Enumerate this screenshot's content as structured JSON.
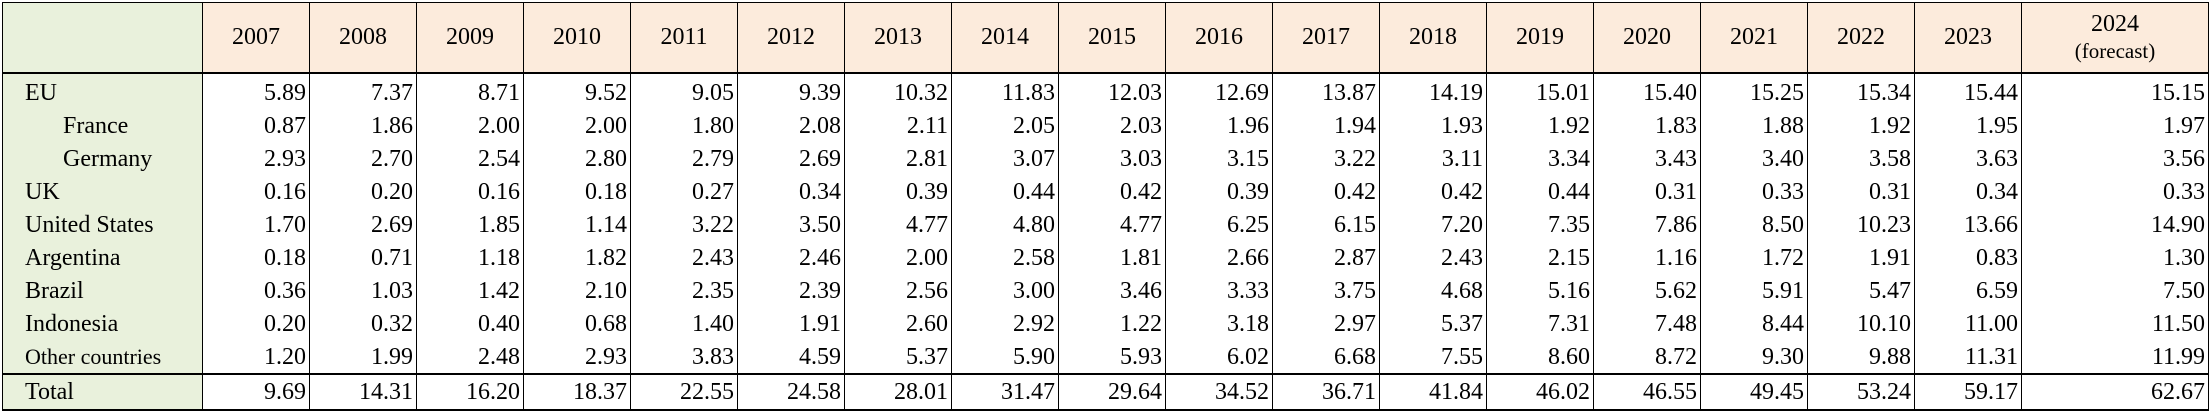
{
  "table": {
    "years": [
      "2007",
      "2008",
      "2009",
      "2010",
      "2011",
      "2012",
      "2013",
      "2014",
      "2015",
      "2016",
      "2017",
      "2018",
      "2019",
      "2020",
      "2021",
      "2022",
      "2023",
      "2024"
    ],
    "last_year_note": "(forecast)",
    "rows": [
      {
        "label": "EU",
        "values": [
          "5.89",
          "7.37",
          "8.71",
          "9.52",
          "9.05",
          "9.39",
          "10.32",
          "11.83",
          "12.03",
          "12.69",
          "13.87",
          "14.19",
          "15.01",
          "15.40",
          "15.25",
          "15.34",
          "15.44",
          "15.15"
        ]
      },
      {
        "label": "France",
        "values": [
          "0.87",
          "1.86",
          "2.00",
          "2.00",
          "1.80",
          "2.08",
          "2.11",
          "2.05",
          "2.03",
          "1.96",
          "1.94",
          "1.93",
          "1.92",
          "1.83",
          "1.88",
          "1.92",
          "1.95",
          "1.97"
        ]
      },
      {
        "label": "Germany",
        "values": [
          "2.93",
          "2.70",
          "2.54",
          "2.80",
          "2.79",
          "2.69",
          "2.81",
          "3.07",
          "3.03",
          "3.15",
          "3.22",
          "3.11",
          "3.34",
          "3.43",
          "3.40",
          "3.58",
          "3.63",
          "3.56"
        ]
      },
      {
        "label": "UK",
        "values": [
          "0.16",
          "0.20",
          "0.16",
          "0.18",
          "0.27",
          "0.34",
          "0.39",
          "0.44",
          "0.42",
          "0.39",
          "0.42",
          "0.42",
          "0.44",
          "0.31",
          "0.33",
          "0.31",
          "0.34",
          "0.33"
        ]
      },
      {
        "label": "United States",
        "values": [
          "1.70",
          "2.69",
          "1.85",
          "1.14",
          "3.22",
          "3.50",
          "4.77",
          "4.80",
          "4.77",
          "6.25",
          "6.15",
          "7.20",
          "7.35",
          "7.86",
          "8.50",
          "10.23",
          "13.66",
          "14.90"
        ]
      },
      {
        "label": "Argentina",
        "values": [
          "0.18",
          "0.71",
          "1.18",
          "1.82",
          "2.43",
          "2.46",
          "2.00",
          "2.58",
          "1.81",
          "2.66",
          "2.87",
          "2.43",
          "2.15",
          "1.16",
          "1.72",
          "1.91",
          "0.83",
          "1.30"
        ]
      },
      {
        "label": "Brazil",
        "values": [
          "0.36",
          "1.03",
          "1.42",
          "2.10",
          "2.35",
          "2.39",
          "2.56",
          "3.00",
          "3.46",
          "3.33",
          "3.75",
          "4.68",
          "5.16",
          "5.62",
          "5.91",
          "5.47",
          "6.59",
          "7.50"
        ]
      },
      {
        "label": "Indonesia",
        "values": [
          "0.20",
          "0.32",
          "0.40",
          "0.68",
          "1.40",
          "1.91",
          "2.60",
          "2.92",
          "1.22",
          "3.18",
          "2.97",
          "5.37",
          "7.31",
          "7.48",
          "8.44",
          "10.10",
          "11.00",
          "11.50"
        ]
      },
      {
        "label": "Other countries",
        "values": [
          "1.20",
          "1.99",
          "2.48",
          "2.93",
          "3.83",
          "4.59",
          "5.37",
          "5.90",
          "5.93",
          "6.02",
          "6.68",
          "7.55",
          "8.60",
          "8.72",
          "9.30",
          "9.88",
          "11.31",
          "11.99"
        ]
      },
      {
        "label": "Total",
        "values": [
          "9.69",
          "14.31",
          "16.20",
          "18.37",
          "22.55",
          "24.58",
          "28.01",
          "31.47",
          "29.64",
          "34.52",
          "36.71",
          "41.84",
          "46.02",
          "46.55",
          "49.45",
          "53.24",
          "59.17",
          "62.67"
        ]
      }
    ]
  },
  "colors": {
    "header_bg": "#fcebdc",
    "label_bg": "#e9f1dc",
    "border": "#000000"
  }
}
